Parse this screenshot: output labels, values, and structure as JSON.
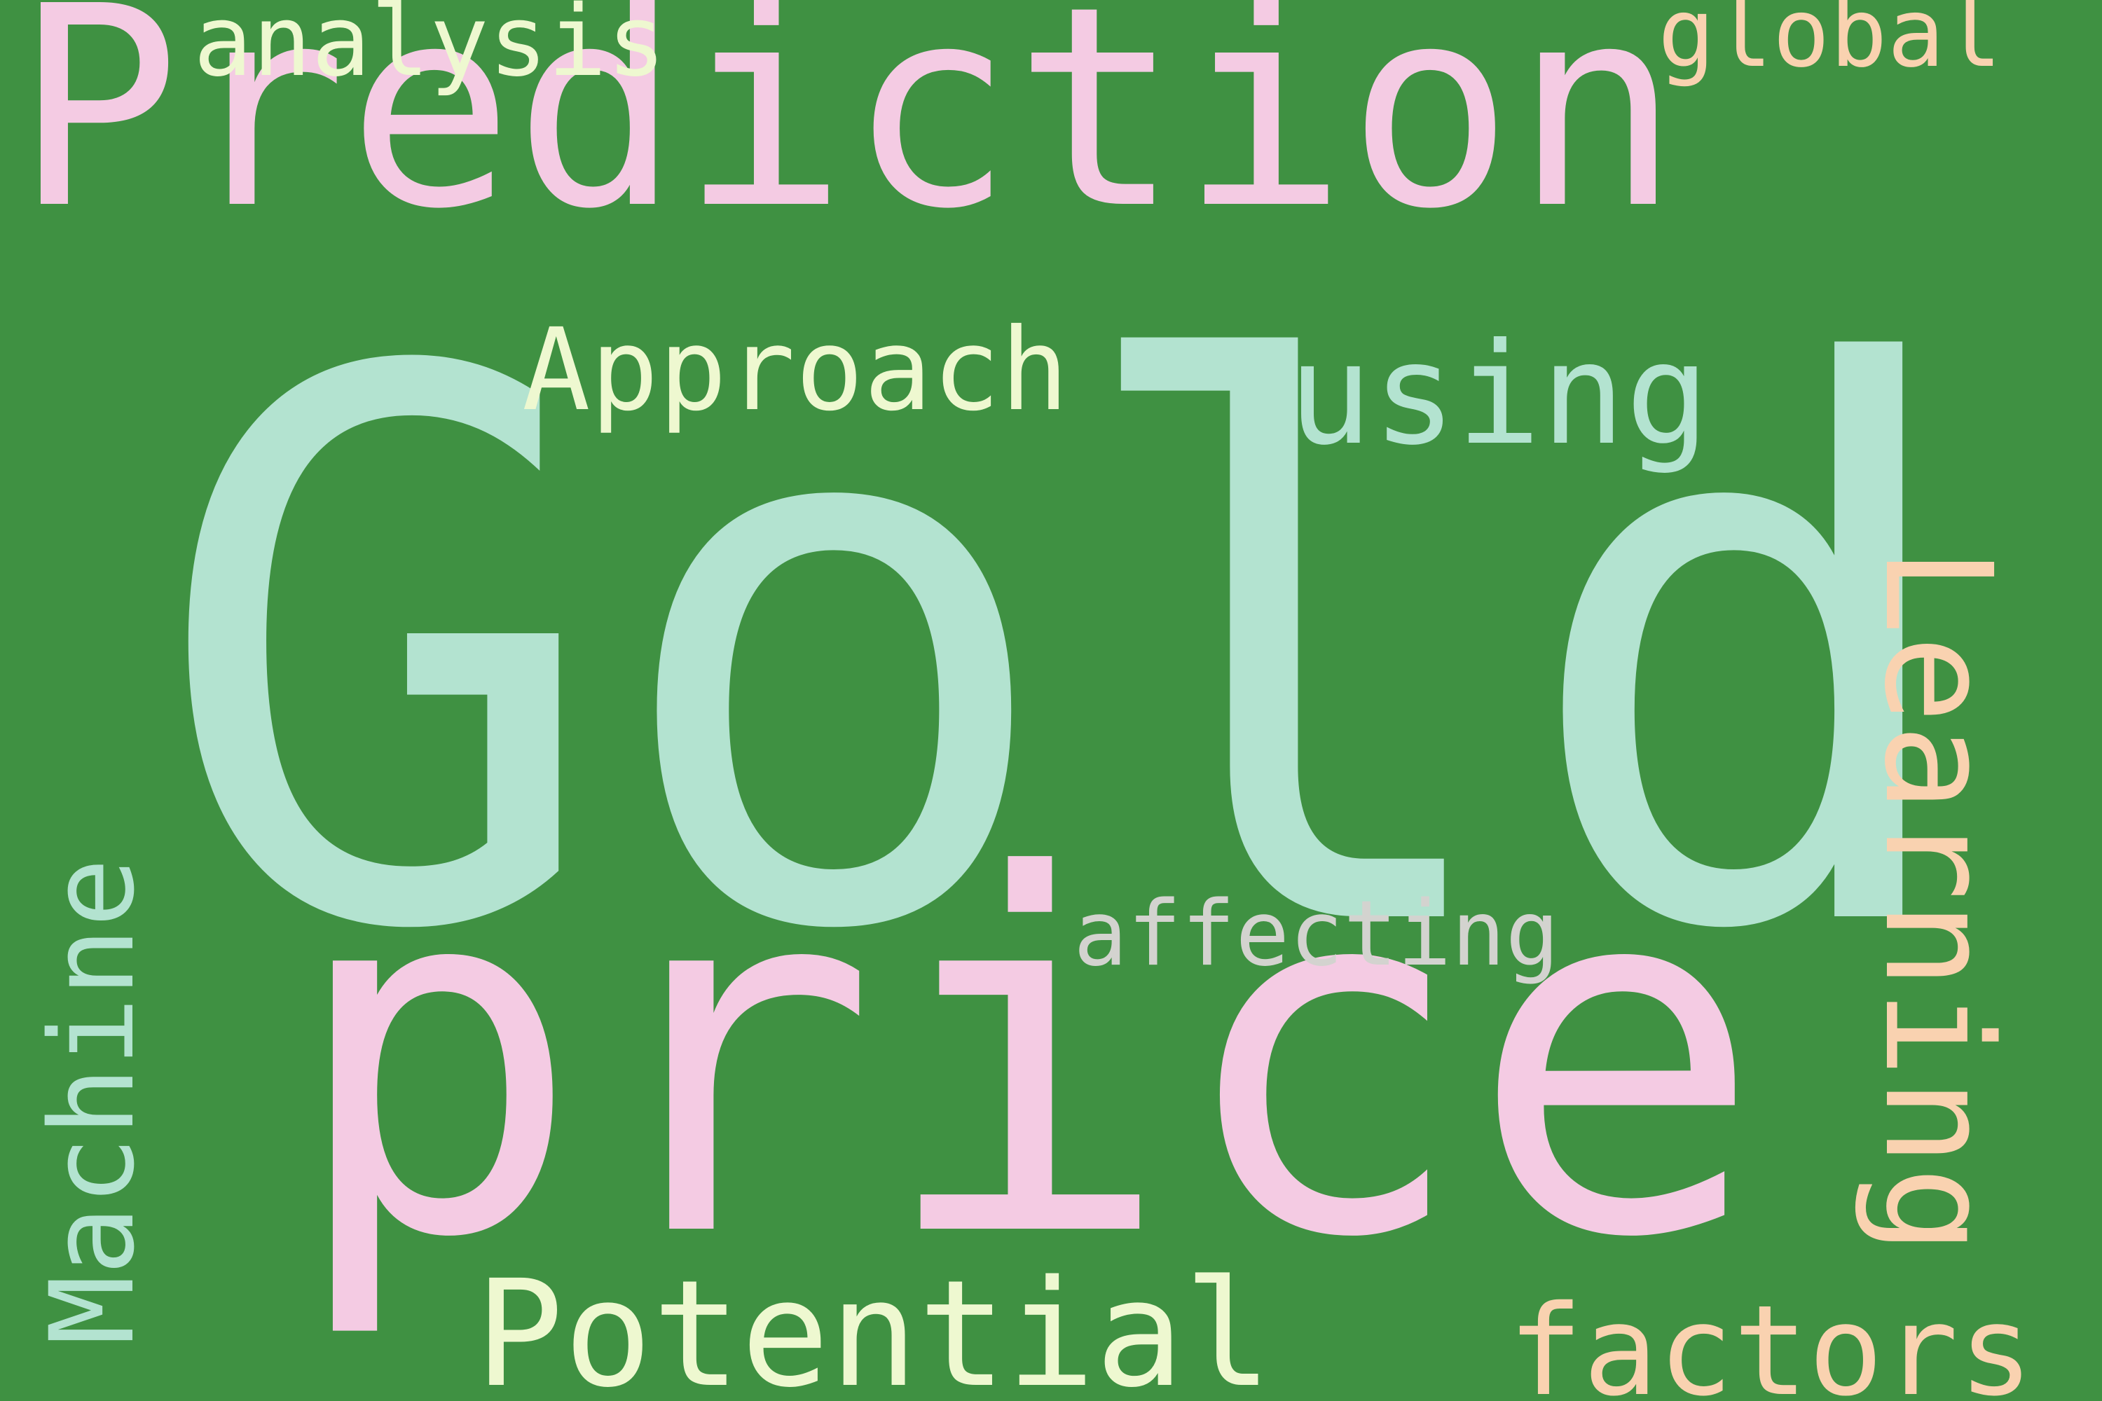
{
  "background": "#3f9142",
  "palette": {
    "pink": "#f4cbe3",
    "mint": "#b3e3d0",
    "pale_yellow": "#eef8d0",
    "peach": "#f9d2b0",
    "light_gray": "#d3d3cf"
  },
  "words": [
    {
      "key": "gold",
      "text": "Gold",
      "color": "#b3e3d0"
    },
    {
      "key": "prediction",
      "text": "Prediction",
      "color": "#f4cbe3"
    },
    {
      "key": "price",
      "text": "price",
      "color": "#f4cbe3"
    },
    {
      "key": "machine",
      "text": "Machine",
      "color": "#b3e3d0",
      "orientation": "vertical"
    },
    {
      "key": "learning",
      "text": "Learning",
      "color": "#f9d2b0",
      "orientation": "vertical"
    },
    {
      "key": "potential",
      "text": "Potential",
      "color": "#eef8d0"
    },
    {
      "key": "factors",
      "text": "factors",
      "color": "#f9d2b0"
    },
    {
      "key": "approach",
      "text": "Approach",
      "color": "#eef8d0"
    },
    {
      "key": "using",
      "text": "using",
      "color": "#b3e3d0"
    },
    {
      "key": "affecting",
      "text": "affecting",
      "color": "#d3d3cf"
    },
    {
      "key": "analysis",
      "text": "analysis",
      "color": "#eef8d0"
    },
    {
      "key": "global",
      "text": "global",
      "color": "#f9d2b0"
    }
  ]
}
